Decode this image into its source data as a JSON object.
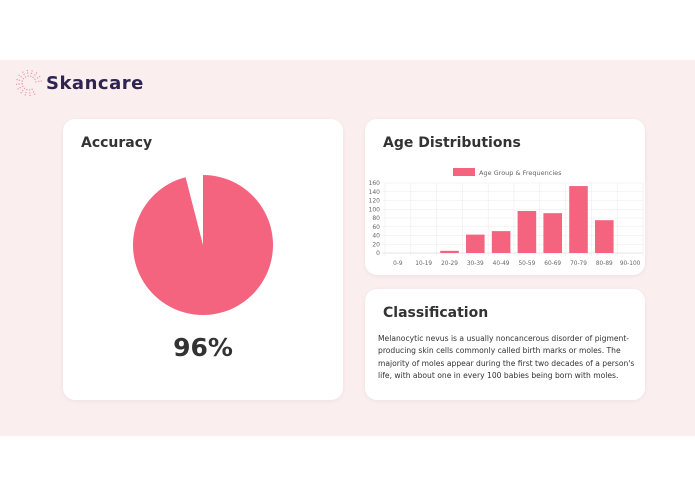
{
  "brand": {
    "name": "Skancare",
    "accent": "#f4647f"
  },
  "accuracy": {
    "title": "Accuracy",
    "value_label": "96%",
    "value": 96
  },
  "age": {
    "title": "Age Distributions"
  },
  "classification": {
    "title": "Classification",
    "text": "Melanocytic nevus is a usually noncancerous disorder of pigment-producing skin cells commonly called birth marks or moles. The majority of moles appear during the first two decades of a person's life, with about one in every 100 babies being born with moles."
  },
  "chart_data": {
    "type": "bar",
    "legend": "Age Group & Frequencies",
    "legend_position": "top",
    "categories": [
      "0-9",
      "10-19",
      "20-29",
      "30-39",
      "40-49",
      "50-59",
      "60-69",
      "70-79",
      "80-89",
      "90-100"
    ],
    "values": [
      0,
      0,
      5,
      42,
      50,
      96,
      91,
      153,
      75,
      0
    ],
    "yticks": [
      0,
      20,
      40,
      60,
      80,
      100,
      120,
      140,
      160
    ],
    "ylim": [
      0,
      160
    ],
    "grid": true,
    "color": "#f4647f"
  }
}
